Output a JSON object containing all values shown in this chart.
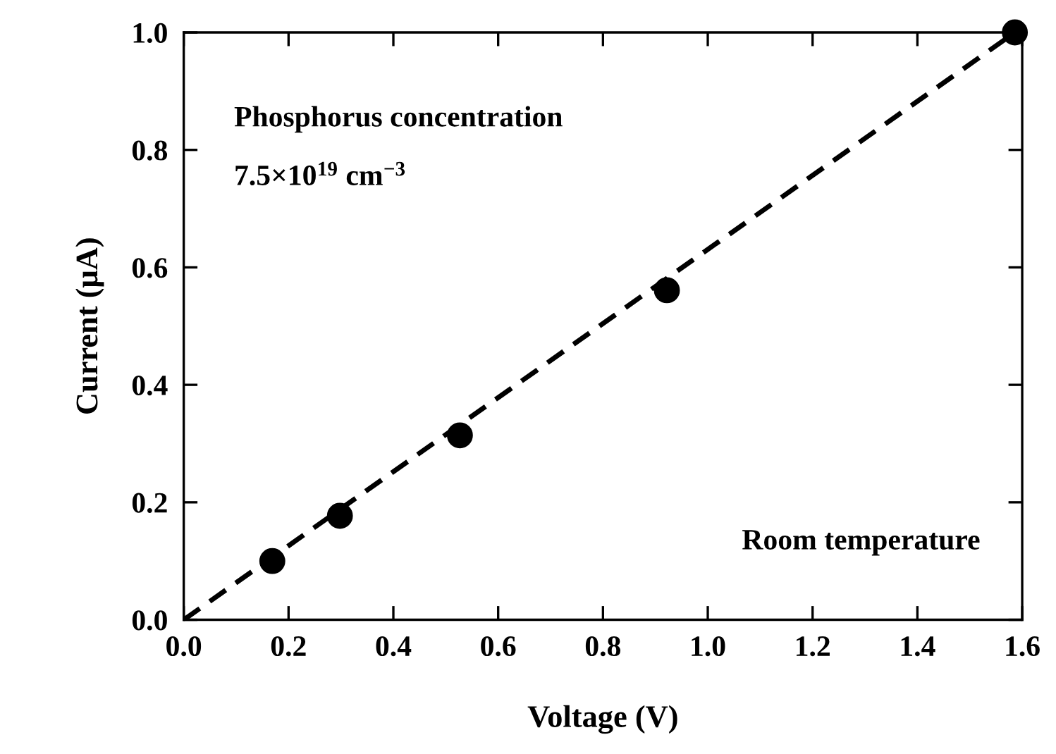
{
  "chart_data": {
    "type": "scatter",
    "xlabel": "Voltage (V)",
    "ylabel": "Current (μA)",
    "x": [
      0.169,
      0.298,
      0.527,
      0.922,
      1.586
    ],
    "series": [
      {
        "color": "#000000",
        "marker": "circle",
        "values": [
          0.1,
          0.177,
          0.314,
          0.561,
          1.0
        ]
      },
      {
        "type": "line",
        "color": "#000000",
        "line_style": "dashed",
        "marker": "none",
        "x": [
          0.0,
          1.586
        ],
        "values": [
          0.0,
          1.0
        ]
      }
    ],
    "annotations": [
      "Phosphorus concentration",
      "7.5×10$^{19}$ cm$^{−3}$",
      "Room temperature"
    ],
    "xlim": [
      0,
      1.6
    ],
    "ylim": [
      0,
      1.0
    ],
    "xticks": [
      {
        "value": 0,
        "label": "0.0"
      },
      0.2,
      0.4,
      0.6,
      0.8,
      {
        "value": 1,
        "label": "1.0"
      },
      1.2,
      1.4,
      1.6
    ],
    "yticks": [
      {
        "value": 0,
        "label": "0.0"
      },
      0.2,
      0.4,
      0.6,
      0.8,
      {
        "value": 1,
        "label": "1.0"
      }
    ],
    "grid": false,
    "legend": false
  }
}
